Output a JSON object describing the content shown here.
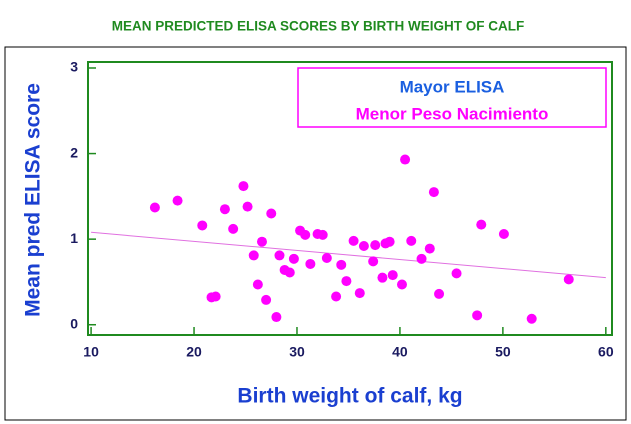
{
  "chart_data": {
    "type": "scatter",
    "title": "MEAN PREDICTED ELISA SCORES BY BIRTH WEIGHT OF CALF",
    "x_label": "Birth weight of calf, kg",
    "y_label": "Mean pred ELISA score",
    "annotations": [
      "Mayor ELISA",
      "Menor Peso Nacimiento"
    ],
    "xlim": [
      9.7,
      60.6
    ],
    "ylim": [
      -0.12,
      3.07
    ],
    "xticks": [
      10,
      20,
      30,
      40,
      50,
      60
    ],
    "yticks": [
      0,
      1,
      2,
      3
    ],
    "color": "#ff00ff",
    "line_color": "#e070e0",
    "x": [
      16.2,
      18.4,
      20.8,
      21.7,
      22.1,
      23.0,
      23.8,
      24.8,
      25.2,
      25.8,
      26.2,
      26.6,
      27.0,
      27.5,
      28.0,
      28.3,
      28.8,
      29.3,
      29.7,
      30.3,
      30.8,
      31.3,
      32.0,
      32.5,
      32.9,
      33.8,
      34.3,
      34.8,
      35.5,
      36.1,
      36.5,
      37.4,
      37.6,
      38.3,
      38.6,
      39.0,
      39.3,
      40.2,
      40.5,
      41.1,
      42.1,
      42.9,
      43.3,
      43.8,
      45.5,
      47.5,
      47.9,
      50.1,
      52.8,
      56.4
    ],
    "values": [
      1.37,
      1.45,
      1.16,
      0.32,
      0.33,
      1.35,
      1.12,
      1.62,
      1.38,
      0.81,
      0.47,
      0.97,
      0.29,
      1.3,
      0.09,
      0.81,
      0.64,
      0.61,
      0.77,
      1.1,
      1.05,
      0.71,
      1.06,
      1.05,
      0.78,
      0.33,
      0.7,
      0.51,
      0.98,
      0.37,
      0.92,
      0.74,
      0.93,
      0.55,
      0.95,
      0.97,
      0.58,
      0.47,
      1.93,
      0.98,
      0.77,
      0.89,
      1.55,
      0.36,
      0.6,
      0.11,
      1.17,
      1.06,
      0.07,
      0.53
    ],
    "trend_line": {
      "x": [
        10,
        60
      ],
      "values": [
        1.08,
        0.55
      ]
    }
  }
}
